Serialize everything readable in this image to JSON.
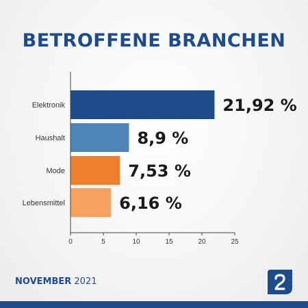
{
  "title": "BETROFFENE BRANCHEN",
  "footer": {
    "month": "NOVEMBER",
    "year": "2021"
  },
  "colors": {
    "title": "#1e4b8c",
    "bars": [
      "#1e4b8c",
      "#4f86b8",
      "#ee7f2d",
      "#f4a25e"
    ],
    "axis": "#444444"
  },
  "logo_icon": "brand-logo-icon",
  "chart_data": {
    "type": "bar",
    "orientation": "horizontal",
    "categories": [
      "Elektronik",
      "Haushalt",
      "Mode",
      "Lebensmittel"
    ],
    "values": [
      21.92,
      8.9,
      7.53,
      6.16
    ],
    "value_labels": [
      "21,92 %",
      "8,9 %",
      "7,53 %",
      "6,16 %"
    ],
    "xlim": [
      0,
      25
    ],
    "xticks": [
      "0",
      "5",
      "10",
      "15",
      "20",
      "25"
    ],
    "tick_values": [
      0,
      5,
      10,
      15,
      20,
      25
    ],
    "grid": false
  }
}
